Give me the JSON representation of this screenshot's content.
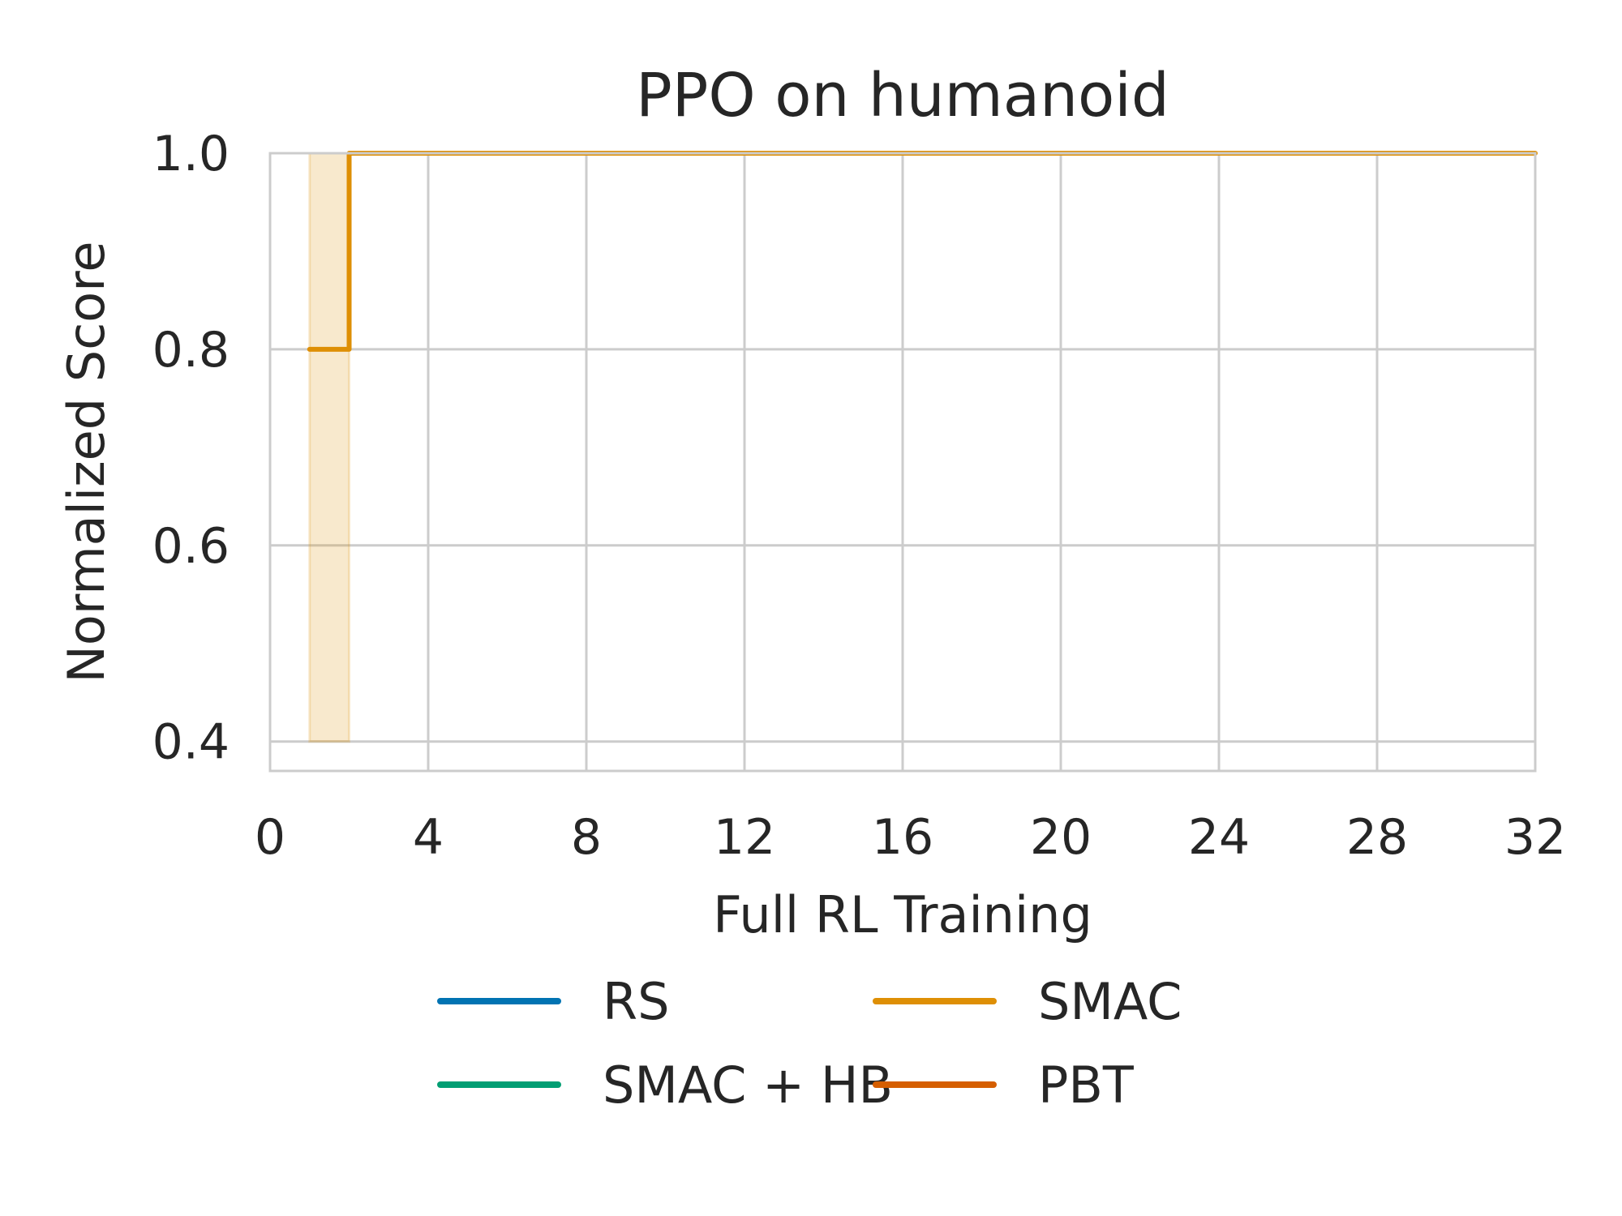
{
  "chart_data": {
    "type": "line",
    "title": "PPO on humanoid",
    "xlabel": "Full RL Training",
    "ylabel": "Normalized Score",
    "xlim": [
      0,
      32
    ],
    "ylim": [
      0.37,
      1.0
    ],
    "xticks": [
      0,
      4,
      8,
      12,
      16,
      20,
      24,
      28,
      32
    ],
    "xtick_labels": [
      "0",
      "4",
      "8",
      "12",
      "16",
      "20",
      "24",
      "28",
      "32"
    ],
    "yticks": [
      0.4,
      0.6,
      0.8,
      1.0
    ],
    "ytick_labels": [
      "0.4",
      "0.6",
      "0.8",
      "1.0"
    ],
    "grid": true,
    "legend_position": "bottom",
    "series": [
      {
        "name": "RS",
        "color": "#0173b2",
        "x": [
          0,
          32
        ],
        "y": [
          1.0,
          1.0
        ],
        "step": "post"
      },
      {
        "name": "SMAC",
        "color": "#de8f05",
        "x": [
          1,
          2,
          2,
          32
        ],
        "y": [
          0.8,
          0.8,
          1.0,
          1.0
        ],
        "step": "post",
        "band": {
          "x": [
            1,
            2
          ],
          "lower": [
            0.4,
            0.4
          ],
          "upper": [
            1.0,
            1.0
          ]
        }
      },
      {
        "name": "SMAC + HB",
        "color": "#029e73",
        "x": [
          0,
          32
        ],
        "y": [
          1.0,
          1.0
        ],
        "step": "post"
      },
      {
        "name": "PBT",
        "color": "#d55e00",
        "x": [
          3,
          32
        ],
        "y": [
          1.0,
          1.0
        ],
        "step": "post"
      }
    ]
  }
}
